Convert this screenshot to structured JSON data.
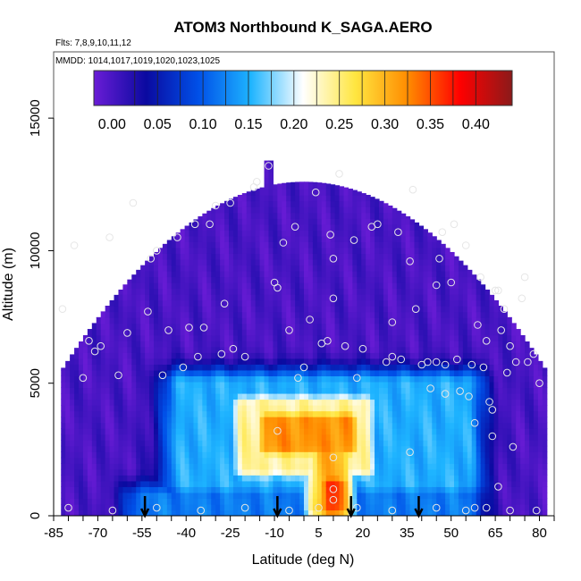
{
  "chart_data": {
    "type": "heatmap",
    "title": "ATOM3 Northbound K_SAGA.AERO",
    "flights_note": "Flts: 7,8,9,10,11,12",
    "dates_note": "MMDD: 1014,1017,1019,1020,1023,1025",
    "xlabel": "Latitude (deg N)",
    "ylabel": "Altitude (m)",
    "xlim": [
      -85,
      85
    ],
    "ylim": [
      0,
      17500
    ],
    "x_ticks": [
      -85,
      -70,
      -55,
      -40,
      -25,
      -10,
      5,
      20,
      35,
      50,
      65,
      80
    ],
    "x_tick_labels": [
      "-85",
      "-70",
      "-55",
      "-40",
      "-25",
      "-10",
      "5",
      "20",
      "35",
      "50",
      "65",
      "80"
    ],
    "y_ticks": [
      0,
      5000,
      10000,
      15000
    ],
    "y_tick_labels": [
      "0",
      "5000",
      "10000",
      "15000"
    ],
    "colorbar": {
      "range": [
        -0.02,
        0.44
      ],
      "ticks": [
        0.0,
        0.05,
        0.1,
        0.15,
        0.2,
        0.25,
        0.3,
        0.35,
        0.4
      ],
      "tick_labels": [
        "0.00",
        "0.05",
        "0.10",
        "0.15",
        "0.20",
        "0.25",
        "0.30",
        "0.35",
        "0.40"
      ],
      "colors": [
        "#6a1cd6",
        "#0a0aa0",
        "#0050e8",
        "#1eb4ff",
        "#ffffff",
        "#ffe640",
        "#ff8c00",
        "#ff0000",
        "#8b1a1a"
      ]
    },
    "grid": false,
    "legend": "colorbar top inside plot",
    "background_value": 0.0,
    "features": [
      {
        "name": "mid-troposphere band",
        "lat": [
          -42,
          55
        ],
        "alt": [
          1200,
          5000
        ],
        "value": 0.15
      },
      {
        "name": "core plume",
        "lat": [
          -20,
          20
        ],
        "alt": [
          1800,
          4200
        ],
        "value": 0.24
      },
      {
        "name": "peak plume",
        "lat": [
          -12,
          15
        ],
        "alt": [
          2600,
          3600
        ],
        "value": 0.32
      },
      {
        "name": "near-surface column",
        "lat": [
          6,
          12
        ],
        "alt": [
          300,
          2400
        ],
        "value": 0.3
      },
      {
        "name": "surface maximum",
        "lat": [
          9,
          11
        ],
        "alt": [
          300,
          1200
        ],
        "value": 0.36
      },
      {
        "name": "surface layer",
        "lat": [
          -55,
          55
        ],
        "alt": [
          100,
          700
        ],
        "value": 0.12
      }
    ],
    "arrows_lat": [
      -54,
      -9,
      16,
      39
    ],
    "observations": [
      [
        -82,
        7800
      ],
      [
        -78,
        10200
      ],
      [
        -75,
        5200
      ],
      [
        -73,
        6600
      ],
      [
        -71,
        6200
      ],
      [
        -69,
        6400
      ],
      [
        -66,
        10500
      ],
      [
        -63,
        5300
      ],
      [
        -60,
        6900
      ],
      [
        -58,
        11800
      ],
      [
        -53,
        7700
      ],
      [
        -52,
        9700
      ],
      [
        -50,
        10000
      ],
      [
        -48,
        5300
      ],
      [
        -46,
        7000
      ],
      [
        -43,
        10500
      ],
      [
        -41,
        5600
      ],
      [
        -39,
        7100
      ],
      [
        -37,
        11000
      ],
      [
        -36,
        6000
      ],
      [
        -34,
        7100
      ],
      [
        -32,
        11000
      ],
      [
        -30,
        11700
      ],
      [
        -28,
        6100
      ],
      [
        -27,
        8000
      ],
      [
        -25,
        11800
      ],
      [
        -24,
        6300
      ],
      [
        -20,
        6000
      ],
      [
        -17,
        12400
      ],
      [
        -16,
        12600
      ],
      [
        -12,
        13200
      ],
      [
        -10,
        8800
      ],
      [
        -9,
        8600
      ],
      [
        -7,
        10300
      ],
      [
        -5,
        7000
      ],
      [
        -3,
        10900
      ],
      [
        -2,
        5200
      ],
      [
        0,
        5600
      ],
      [
        2,
        7400
      ],
      [
        4,
        12200
      ],
      [
        6,
        6500
      ],
      [
        8,
        6600
      ],
      [
        9,
        10600
      ],
      [
        10,
        9700
      ],
      [
        10,
        8200
      ],
      [
        12,
        12900
      ],
      [
        14,
        6400
      ],
      [
        17,
        10400
      ],
      [
        18,
        5200
      ],
      [
        20,
        6300
      ],
      [
        23,
        10900
      ],
      [
        25,
        11000
      ],
      [
        28,
        5800
      ],
      [
        30,
        7300
      ],
      [
        32,
        10700
      ],
      [
        33,
        5900
      ],
      [
        36,
        9600
      ],
      [
        37,
        12300
      ],
      [
        38,
        7800
      ],
      [
        40,
        5700
      ],
      [
        42,
        5800
      ],
      [
        43,
        4800
      ],
      [
        45,
        8700
      ],
      [
        46,
        9700
      ],
      [
        47,
        10700
      ],
      [
        48,
        4600
      ],
      [
        48,
        5700
      ],
      [
        50,
        8800
      ],
      [
        51,
        11000
      ],
      [
        52,
        5900
      ],
      [
        53,
        4700
      ],
      [
        55,
        10200
      ],
      [
        56,
        4500
      ],
      [
        57,
        5700
      ],
      [
        58,
        3500
      ],
      [
        59,
        7200
      ],
      [
        60,
        9000
      ],
      [
        61,
        5600
      ],
      [
        62,
        6600
      ],
      [
        63,
        4300
      ],
      [
        64,
        3000
      ],
      [
        64,
        4000
      ],
      [
        65,
        8500
      ],
      [
        66,
        8500
      ],
      [
        67,
        7000
      ],
      [
        68,
        7800
      ],
      [
        69,
        5400
      ],
      [
        70,
        6400
      ],
      [
        71,
        2600
      ],
      [
        72,
        5800
      ],
      [
        74,
        8200
      ],
      [
        75,
        9000
      ],
      [
        76,
        5800
      ],
      [
        78,
        6100
      ],
      [
        79,
        200
      ],
      [
        80,
        5000
      ],
      [
        -80,
        300
      ],
      [
        -65,
        200
      ],
      [
        -50,
        300
      ],
      [
        -35,
        200
      ],
      [
        -20,
        300
      ],
      [
        -5,
        200
      ],
      [
        5,
        300
      ],
      [
        18,
        300
      ],
      [
        30,
        200
      ],
      [
        45,
        300
      ],
      [
        55,
        200
      ],
      [
        62,
        300
      ],
      [
        10,
        600
      ],
      [
        10,
        1000
      ],
      [
        10,
        2200
      ],
      [
        -9,
        3200
      ],
      [
        36,
        2400
      ],
      [
        66,
        1100
      ],
      [
        30,
        6000
      ],
      [
        45,
        5800
      ],
      [
        58,
        300
      ],
      [
        70,
        200
      ]
    ]
  }
}
